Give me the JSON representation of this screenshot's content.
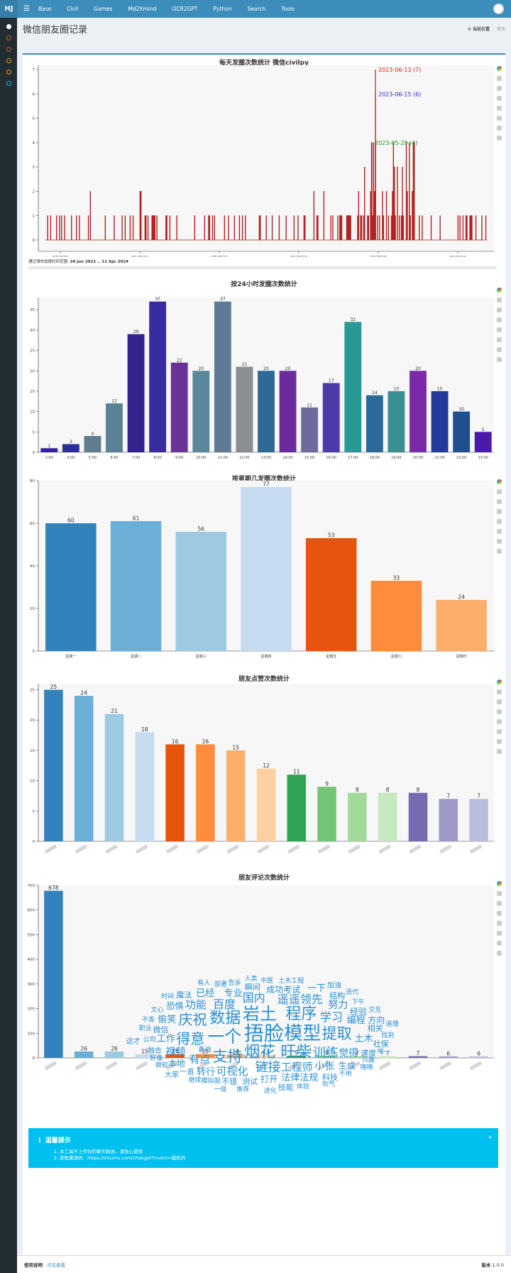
{
  "topbar": {
    "brand": "HJ",
    "menu_icon": "hamburger-icon",
    "nav": [
      "Base",
      "Civil",
      "Games",
      "Md2Xmind",
      "OCR2GPT",
      "Python",
      "Search",
      "Tools"
    ],
    "avatar_icon": "user-avatar-icon"
  },
  "sidebar": {
    "icons": [
      {
        "name": "gear-icon",
        "color": "#ffffff"
      },
      {
        "name": "circle-icon",
        "color": "#dd4b39"
      },
      {
        "name": "circle-icon",
        "color": "#dd4b39"
      },
      {
        "name": "circle-icon",
        "color": "#f39c12"
      },
      {
        "name": "circle-icon",
        "color": "#f39c12"
      },
      {
        "name": "circle-icon",
        "color": "#00c0ef"
      }
    ]
  },
  "page": {
    "title": "微信朋友圈记录",
    "breadcrumb_current": "当前位置",
    "breadcrumb_home": "首页"
  },
  "charts": {
    "timeline": {
      "title": "每天发圈次数统计 微信civilpy",
      "range_label": "通过滑块选择时间范围:",
      "range_value": "28 Jun 2021 .. 11 Apr 2024"
    },
    "hourly_title": "按24小时发圈次数统计",
    "weekday_title": "按星期几发圈次数统计",
    "likes_title": "朋友点赞次数统计",
    "comments_title": "朋友评论次数统计"
  },
  "chart_data": [
    {
      "type": "line",
      "title": "每天发圈次数统计 微信civilpy",
      "x_ticks": [
        "07/2021",
        "01/2022",
        "07/2022",
        "01/2023",
        "07/2023",
        "01/2024"
      ],
      "ylim": [
        0,
        7
      ],
      "y_ticks": [
        0,
        1,
        2,
        3,
        4,
        5,
        6,
        7
      ],
      "annotations": [
        {
          "label": "2023-06-13",
          "value": 7,
          "color": "#e31a1c"
        },
        {
          "label": "2023-06-15",
          "value": 6,
          "color": "#1f1fd6"
        },
        {
          "label": "2023-05-29",
          "value": 4,
          "color": "#1a8f1a"
        }
      ],
      "color": "#b22222"
    },
    {
      "type": "bar",
      "title": "按24小时发圈次数统计",
      "categories": [
        "1:00",
        "3:00",
        "5:00",
        "6:00",
        "7:00",
        "8:00",
        "9:00",
        "10:00",
        "11:00",
        "12:00",
        "13:00",
        "14:00",
        "15:00",
        "16:00",
        "17:00",
        "18:00",
        "19:00",
        "20:00",
        "21:00",
        "22:00",
        "23:00"
      ],
      "values": [
        1,
        2,
        4,
        12,
        29,
        37,
        22,
        20,
        37,
        21,
        20,
        20,
        11,
        17,
        32,
        14,
        15,
        20,
        15,
        10,
        5
      ],
      "colors": [
        "#3a1fa6",
        "#2e2b9a",
        "#5f7d8c",
        "#5a8196",
        "#35228e",
        "#372b9e",
        "#6a3296",
        "#5a8799",
        "#5f7a96",
        "#8a8f94",
        "#2f6a97",
        "#6b2b9a",
        "#6d6b9d",
        "#4a3ba8",
        "#2a9895",
        "#2a6a9a",
        "#3b8f93",
        "#7a2aa8",
        "#233a9a",
        "#1f4f8f",
        "#4a1aa8"
      ],
      "ylim": [
        0,
        38
      ],
      "y_ticks": [
        0,
        5,
        10,
        15,
        20,
        25,
        30,
        35
      ]
    },
    {
      "type": "bar",
      "title": "按星期几发圈次数统计",
      "categories": [
        "星期一",
        "星期二",
        "星期三",
        "星期四",
        "星期五",
        "星期六",
        "星期日"
      ],
      "values": [
        60,
        61,
        56,
        77,
        53,
        33,
        24
      ],
      "colors": [
        "#3182bd",
        "#6baed6",
        "#9ecae1",
        "#c6dbef",
        "#e6550d",
        "#fd8d3c",
        "#fdae6b"
      ],
      "ylim": [
        0,
        80
      ],
      "y_ticks": [
        0,
        20,
        40,
        60,
        80
      ]
    },
    {
      "type": "bar",
      "title": "朋友点赞次数统计",
      "values": [
        25,
        24,
        21,
        18,
        16,
        16,
        15,
        12,
        11,
        9,
        8,
        8,
        8,
        7,
        7
      ],
      "colors": [
        "#3182bd",
        "#6baed6",
        "#9ecae1",
        "#c6dbef",
        "#e6550d",
        "#fd8d3c",
        "#fdae6b",
        "#fdd0a2",
        "#31a354",
        "#74c476",
        "#a1d99b",
        "#c7e9c0",
        "#756bb1",
        "#9e9ac8",
        "#bcbddc"
      ],
      "ylim": [
        0,
        26
      ],
      "y_ticks": [
        0,
        5,
        10,
        15,
        20,
        25
      ]
    },
    {
      "type": "bar",
      "title": "朋友评论次数统计",
      "values": [
        678,
        26,
        26,
        15,
        15,
        15,
        14,
        11,
        9,
        8,
        7,
        7,
        7,
        6,
        6
      ],
      "colors": [
        "#3182bd",
        "#6baed6",
        "#9ecae1",
        "#c6dbef",
        "#e6550d",
        "#fd8d3c",
        "#fdae6b",
        "#fdd0a2",
        "#31a354",
        "#74c476",
        "#a1d99b",
        "#c7e9c0",
        "#756bb1",
        "#9e9ac8",
        "#bcbddc"
      ],
      "ylim": [
        0,
        700
      ],
      "y_ticks": [
        0,
        100,
        200,
        300,
        400,
        500,
        600,
        700
      ]
    }
  ],
  "wordcloud": {
    "words": [
      {
        "t": "捂脸",
        "s": 28
      },
      {
        "t": "模型",
        "s": 26
      },
      {
        "t": "一个",
        "s": 24
      },
      {
        "t": "岩土",
        "s": 24
      },
      {
        "t": "烟花",
        "s": 22
      },
      {
        "t": "程序",
        "s": 22
      },
      {
        "t": "数据",
        "s": 22
      },
      {
        "t": "旺柴",
        "s": 22
      },
      {
        "t": "支持",
        "s": 21
      },
      {
        "t": "提取",
        "s": 21
      },
      {
        "t": "得意",
        "s": 20
      },
      {
        "t": "庆祝",
        "s": 20
      },
      {
        "t": "训练",
        "s": 18
      },
      {
        "t": "链接",
        "s": 18
      },
      {
        "t": "百度",
        "s": 16
      },
      {
        "t": "学习",
        "s": 16
      },
      {
        "t": "国内",
        "s": 16
      },
      {
        "t": "遥遥领先",
        "s": 16
      },
      {
        "t": "工程师",
        "s": 15
      },
      {
        "t": "有点",
        "s": 15
      },
      {
        "t": "可视化",
        "s": 15
      },
      {
        "t": "功能",
        "s": 15
      },
      {
        "t": "视频",
        "s": 14
      },
      {
        "t": "觉得",
        "s": 14
      },
      {
        "t": "努力",
        "s": 14
      },
      {
        "t": "小张",
        "s": 14
      },
      {
        "t": "编程",
        "s": 13
      },
      {
        "t": "工作",
        "s": 13
      },
      {
        "t": "土木",
        "s": 13
      },
      {
        "t": "偷笑",
        "s": 13
      },
      {
        "t": "法律法规",
        "s": 13
      },
      {
        "t": "成功考试",
        "s": 12
      },
      {
        "t": "专业",
        "s": 13
      },
      {
        "t": "转行",
        "s": 13
      },
      {
        "t": "已经",
        "s": 13
      },
      {
        "t": "打开",
        "s": 12
      },
      {
        "t": "生成",
        "s": 12
      },
      {
        "t": "经验",
        "s": 12
      },
      {
        "t": "本地",
        "s": 12
      },
      {
        "t": "恐惧",
        "s": 12
      },
      {
        "t": "微信",
        "s": 11
      },
      {
        "t": "测试",
        "s": 11
      },
      {
        "t": "结构",
        "s": 11
      },
      {
        "t": "速度",
        "s": 11
      },
      {
        "t": "相关",
        "s": 11
      },
      {
        "t": "瞬间",
        "s": 11
      },
      {
        "t": "一下",
        "s": 13
      },
      {
        "t": "不错",
        "s": 11
      },
      {
        "t": "融合",
        "s": 10
      },
      {
        "t": "一直",
        "s": 10
      },
      {
        "t": "方向",
        "s": 12
      },
      {
        "t": "科技",
        "s": 11
      },
      {
        "t": "魔法",
        "s": 11
      },
      {
        "t": "技能",
        "s": 11
      },
      {
        "t": "社保",
        "s": 11
      },
      {
        "t": "土木工程",
        "s": 9
      },
      {
        "t": "公司",
        "s": 9
      },
      {
        "t": "职业",
        "s": 9
      },
      {
        "t": "模拟题",
        "s": 9
      },
      {
        "t": "部署",
        "s": 9
      },
      {
        "t": "备战",
        "s": 9
      },
      {
        "t": "中医",
        "s": 9
      },
      {
        "t": "下午",
        "s": 9
      },
      {
        "t": "不香",
        "s": 9
      },
      {
        "t": "文心",
        "s": 9
      },
      {
        "t": "推荐",
        "s": 9
      },
      {
        "t": "兴趣",
        "s": 9
      },
      {
        "t": "找到",
        "s": 9
      },
      {
        "t": "好像",
        "s": 9
      },
      {
        "t": "微软",
        "s": 9
      },
      {
        "t": "告诉",
        "s": 9
      },
      {
        "t": "不用",
        "s": 9
      },
      {
        "t": "时间",
        "s": 9
      },
      {
        "t": "体验",
        "s": 9
      },
      {
        "t": "继续",
        "s": 9
      },
      {
        "t": "交互",
        "s": 9
      },
      {
        "t": "进化",
        "s": 9
      },
      {
        "t": "唯一",
        "s": 9
      },
      {
        "t": "道理",
        "s": 9
      },
      {
        "t": "有人",
        "s": 9
      },
      {
        "t": "迭代",
        "s": 9
      },
      {
        "t": "人类",
        "s": 9
      },
      {
        "t": "嘻嘻",
        "s": 9
      },
      {
        "t": "一级",
        "s": 9
      },
      {
        "t": "吹气",
        "s": 9
      },
      {
        "t": "这才",
        "s": 10
      },
      {
        "t": "加油",
        "s": 10
      },
      {
        "t": "大家",
        "s": 10
      }
    ]
  },
  "alert": {
    "icon": "info-icon",
    "title": "温馨提示",
    "items": [
      "本工具不上传你的聊天数据，请放心使用",
      "获取邀请码：https://intumu.com/chatgpt?invent=脑机的"
    ],
    "close": "×"
  },
  "footer": {
    "help_label": "使用说明",
    "help_link": "点击查看",
    "version_label": "版本",
    "version_value": "1.0.0"
  }
}
